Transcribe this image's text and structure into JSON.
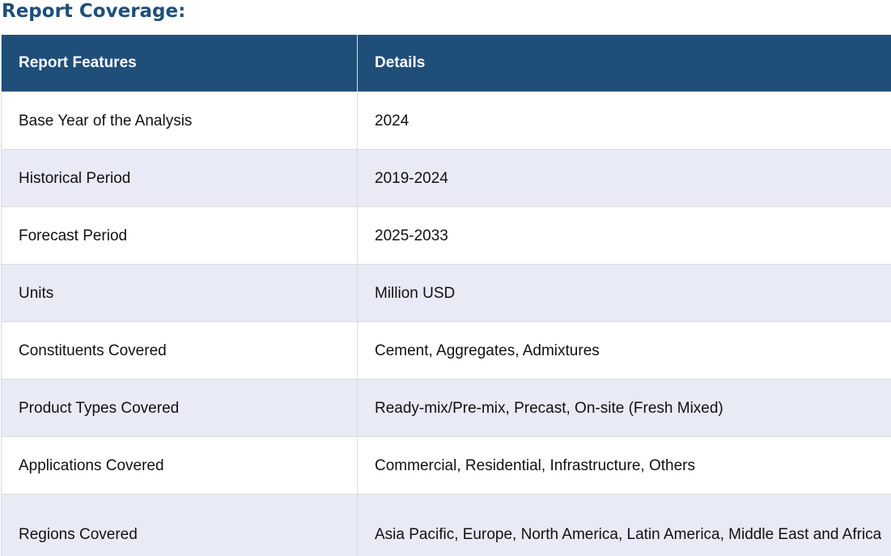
{
  "page": {
    "title": "Report Coverage:"
  },
  "table": {
    "headers": [
      "Report Features",
      "Details"
    ],
    "rows": [
      {
        "feature": "Base Year of the Analysis",
        "details": "2024"
      },
      {
        "feature": "Historical Period",
        "details": "2019-2024"
      },
      {
        "feature": "Forecast Period",
        "details": "2025-2033"
      },
      {
        "feature": "Units",
        "details": "Million USD"
      },
      {
        "feature": "Constituents Covered",
        "details": "Cement, Aggregates, Admixtures"
      },
      {
        "feature": "Product Types Covered",
        "details": "Ready-mix/Pre-mix, Precast, On-site (Fresh Mixed)"
      },
      {
        "feature": "Applications Covered",
        "details": "Commercial, Residential, Infrastructure, Others"
      },
      {
        "feature": "Regions Covered",
        "details": "Asia Pacific, Europe, North America, Latin America, Middle East and Africa"
      }
    ]
  },
  "colors": {
    "header_bg": "#1f4e79",
    "title_text": "#1f4e79",
    "alt_row_bg": "#e8eaf6"
  }
}
